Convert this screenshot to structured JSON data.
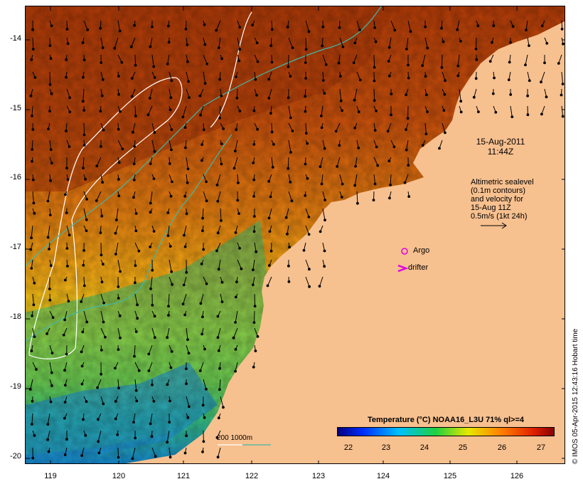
{
  "map": {
    "date": "15-Aug-2011",
    "time": "11:44Z",
    "altimetry_note": [
      "Altimetric sealevel",
      "(0.1m contours)",
      "and velocity for",
      "15-Aug 11Z",
      "0.5m/s (1kt 24h)"
    ],
    "argo_label": "Argo",
    "drifter_label": "drifter",
    "scale_label": "200  1000m",
    "credit": "© IMOS 05-Apr-2015 12:43:16 Hobart time",
    "legend_title": "Temperature (°C) NOAA16_L3U 71% ql>=4",
    "legend_ticks": [
      "22",
      "23",
      "24",
      "25",
      "26",
      "27"
    ],
    "lat_labels": [
      "-14",
      "-15",
      "-16",
      "-17",
      "-18",
      "-19",
      "-20"
    ],
    "lon_labels": [
      "119",
      "120",
      "121",
      "122",
      "123",
      "124",
      "125",
      "126"
    ],
    "colors": {
      "land": "#f7c08f",
      "contour_200m": "#ffffff",
      "contour_1000m": "#3fb8a8",
      "argo": "#e000e0",
      "drifter": "#e000e0"
    }
  }
}
